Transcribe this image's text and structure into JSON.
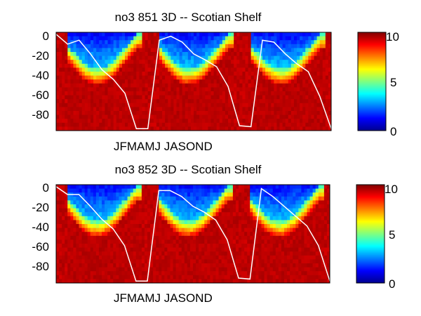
{
  "chart_data": [
    {
      "type": "heatmap",
      "title": "no3  851 3D   -- Scotian Shelf",
      "xlabel": "",
      "ylabel": "",
      "ylim": [
        -100,
        0
      ],
      "yticks": [
        "0",
        "-20",
        "-40",
        "-60",
        "-80"
      ],
      "x_tick_labels": "JFMAMJ JASOND",
      "colorbar": {
        "min": 0,
        "max": 10,
        "ticks": [
          "0",
          "5",
          "10"
        ]
      },
      "years": 3,
      "mixed_layer_depth": [
        -2,
        -12,
        -8,
        -22,
        -38,
        -48,
        -62,
        -98,
        -98,
        -8,
        -4,
        -10,
        -22,
        -28,
        -35,
        -55,
        -95,
        -96,
        -8,
        -10,
        -22,
        -32,
        -40,
        -65,
        -98
      ]
    },
    {
      "type": "heatmap",
      "title": "no3  852 3D   -- Scotian Shelf",
      "xlabel": "",
      "ylabel": "",
      "ylim": [
        -100,
        0
      ],
      "yticks": [
        "0",
        "-20",
        "-40",
        "-60",
        "-80"
      ],
      "x_tick_labels": "JFMAMJ JASOND",
      "colorbar": {
        "min": 0,
        "max": 10,
        "ticks": [
          "0",
          "5",
          "10"
        ]
      },
      "years": 3,
      "mixed_layer_depth": [
        -2,
        -10,
        -10,
        -22,
        -35,
        -45,
        -62,
        -98,
        -98,
        -6,
        -6,
        -12,
        -22,
        -28,
        -36,
        -56,
        -95,
        -96,
        -4,
        -12,
        -22,
        -32,
        -42,
        -62,
        -98
      ]
    }
  ]
}
